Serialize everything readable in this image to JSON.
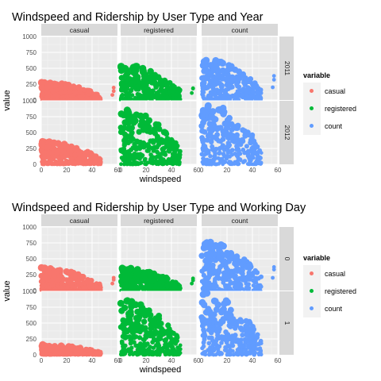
{
  "chart_data": [
    {
      "type": "scatter",
      "title": "Windspeed and Ridership by User Type and Year",
      "xlabel": "windspeed",
      "ylabel": "value",
      "xlim": [
        0,
        60
      ],
      "ylim": [
        0,
        1000
      ],
      "xticks": [
        "0",
        "20",
        "40",
        "60"
      ],
      "yticks": [
        "0",
        "250",
        "500",
        "750",
        "1000"
      ],
      "col_facets": [
        "casual",
        "registered",
        "count"
      ],
      "row_facets": [
        "2011",
        "2012"
      ],
      "legend": {
        "title": "variable",
        "position": "right",
        "entries": [
          "casual",
          "registered",
          "count"
        ]
      },
      "colors": {
        "casual": "#F8766D",
        "registered": "#00BA38",
        "count": "#619CFF"
      },
      "grid": true,
      "panels": {
        "casual": {
          "2011": {
            "x_max": 47,
            "y_max": 280,
            "outliers": [
              [
                56.0,
                80
              ],
              [
                57.0,
                140
              ],
              [
                57.0,
                195
              ]
            ]
          },
          "2012": {
            "x_max": 47,
            "y_max": 360,
            "outliers": [
              [
                43.0,
                60
              ],
              [
                47.0,
                40
              ]
            ]
          }
        },
        "registered": {
          "2011": {
            "x_max": 47,
            "y_max": 560,
            "outliers": [
              [
                56.0,
                110
              ],
              [
                57.0,
                180
              ],
              [
                57.0,
                185
              ]
            ]
          },
          "2012": {
            "x_max": 47,
            "y_max": 880,
            "outliers": [
              [
                43.0,
                200
              ],
              [
                47.0,
                150
              ]
            ]
          }
        },
        "count": {
          "2011": {
            "x_max": 47,
            "y_max": 650,
            "outliers": [
              [
                56.0,
                200
              ],
              [
                57.0,
                320
              ],
              [
                57.0,
                380
              ]
            ]
          },
          "2012": {
            "x_max": 47,
            "y_max": 980,
            "outliers": [
              [
                43.0,
                260
              ],
              [
                47.0,
                180
              ]
            ]
          }
        }
      }
    },
    {
      "type": "scatter",
      "title": "Windspeed and Ridership by User Type and Working Day",
      "xlabel": "windspeed",
      "ylabel": "value",
      "xlim": [
        0,
        60
      ],
      "ylim": [
        0,
        1000
      ],
      "xticks": [
        "0",
        "20",
        "40",
        "60"
      ],
      "yticks": [
        "0",
        "250",
        "500",
        "750",
        "1000"
      ],
      "col_facets": [
        "casual",
        "registered",
        "count"
      ],
      "row_facets": [
        "0",
        "1"
      ],
      "legend": {
        "title": "variable",
        "position": "right",
        "entries": [
          "casual",
          "registered",
          "count"
        ]
      },
      "colors": {
        "casual": "#F8766D",
        "registered": "#00BA38",
        "count": "#619CFF"
      },
      "grid": true,
      "panels": {
        "casual": {
          "0": {
            "x_max": 47,
            "y_max": 360,
            "outliers": [
              [
                56.0,
                110
              ],
              [
                57.0,
                170
              ],
              [
                57.0,
                200
              ]
            ]
          },
          "1": {
            "x_max": 47,
            "y_max": 160,
            "outliers": [
              [
                43.0,
                40
              ],
              [
                47.0,
                20
              ]
            ]
          }
        },
        "registered": {
          "0": {
            "x_max": 47,
            "y_max": 360,
            "outliers": [
              [
                56.0,
                110
              ],
              [
                57.0,
                160
              ],
              [
                57.0,
                190
              ]
            ]
          },
          "1": {
            "x_max": 47,
            "y_max": 880,
            "outliers": [
              [
                43.0,
                200
              ],
              [
                47.0,
                150
              ]
            ]
          }
        },
        "count": {
          "0": {
            "x_max": 47,
            "y_max": 780,
            "outliers": [
              [
                56.0,
                200
              ],
              [
                57.0,
                330
              ],
              [
                57.0,
                370
              ]
            ]
          },
          "1": {
            "x_max": 47,
            "y_max": 980,
            "outliers": [
              [
                43.0,
                260
              ],
              [
                47.0,
                180
              ]
            ]
          }
        }
      }
    }
  ]
}
